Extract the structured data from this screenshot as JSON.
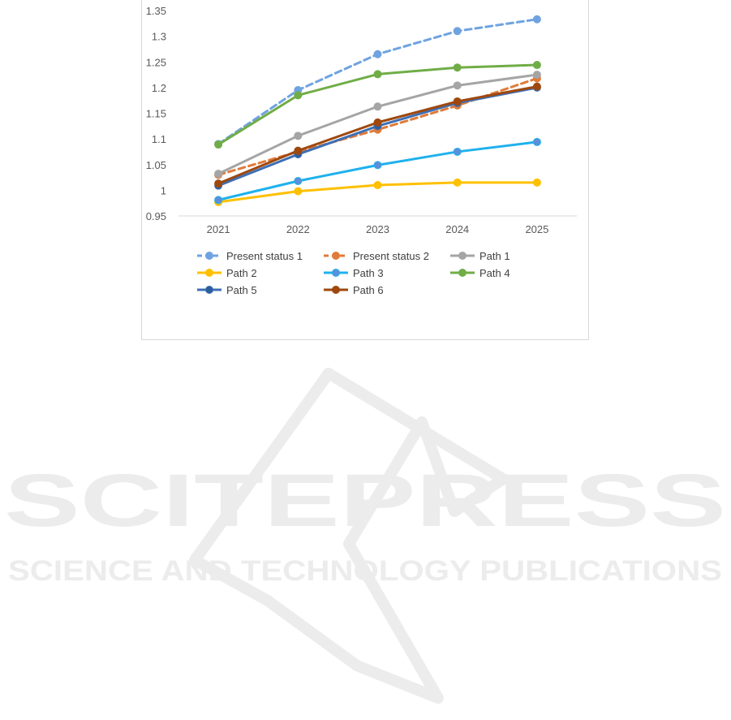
{
  "chart_data": {
    "type": "line",
    "title": "",
    "xlabel": "",
    "ylabel": "",
    "categories": [
      "2021",
      "2022",
      "2023",
      "2024",
      "2025"
    ],
    "ylim": [
      0.95,
      1.35
    ],
    "yticks": [
      "0.95",
      "1",
      "1.05",
      "1.1",
      "1.15",
      "1.2",
      "1.25",
      "1.3",
      "1.35"
    ],
    "grid": false,
    "legend_position": "bottom",
    "series": [
      {
        "name": "Present status 1",
        "values": [
          1.09,
          1.195,
          1.265,
          1.31,
          1.333
        ],
        "color": "#6fa3e0",
        "dash": true,
        "marker_fill": "#6fa3e0"
      },
      {
        "name": "Present status 2",
        "values": [
          1.03,
          1.075,
          1.118,
          1.165,
          1.218
        ],
        "color": "#e07b39",
        "dash": true,
        "marker_fill": "#e07b39"
      },
      {
        "name": "Path 1",
        "values": [
          1.032,
          1.106,
          1.163,
          1.204,
          1.225
        ],
        "color": "#a5a5a5",
        "dash": false,
        "marker_fill": "#a5a5a5"
      },
      {
        "name": "Path 2",
        "values": [
          0.977,
          0.998,
          1.01,
          1.015,
          1.015
        ],
        "color": "#ffc000",
        "dash": false,
        "marker_fill": "#ffc000"
      },
      {
        "name": "Path 3",
        "values": [
          0.981,
          1.018,
          1.049,
          1.075,
          1.094
        ],
        "color": "#1fb1ed",
        "dash": false,
        "marker_fill": "#5b8fd9"
      },
      {
        "name": "Path 4",
        "values": [
          1.089,
          1.185,
          1.226,
          1.239,
          1.244
        ],
        "color": "#70ad47",
        "dash": false,
        "marker_fill": "#70ad47"
      },
      {
        "name": "Path 5",
        "values": [
          1.009,
          1.07,
          1.125,
          1.17,
          1.2
        ],
        "color": "#3e6fb5",
        "dash": false,
        "marker_fill": "#2e5d9b"
      },
      {
        "name": "Path 6",
        "values": [
          1.013,
          1.077,
          1.132,
          1.173,
          1.202
        ],
        "color": "#9e480e",
        "dash": false,
        "marker_fill": "#9e480e"
      }
    ]
  },
  "watermark": {
    "main": "SCITEPRESS",
    "sub": "SCIENCE AND TECHNOLOGY PUBLICATIONS"
  }
}
